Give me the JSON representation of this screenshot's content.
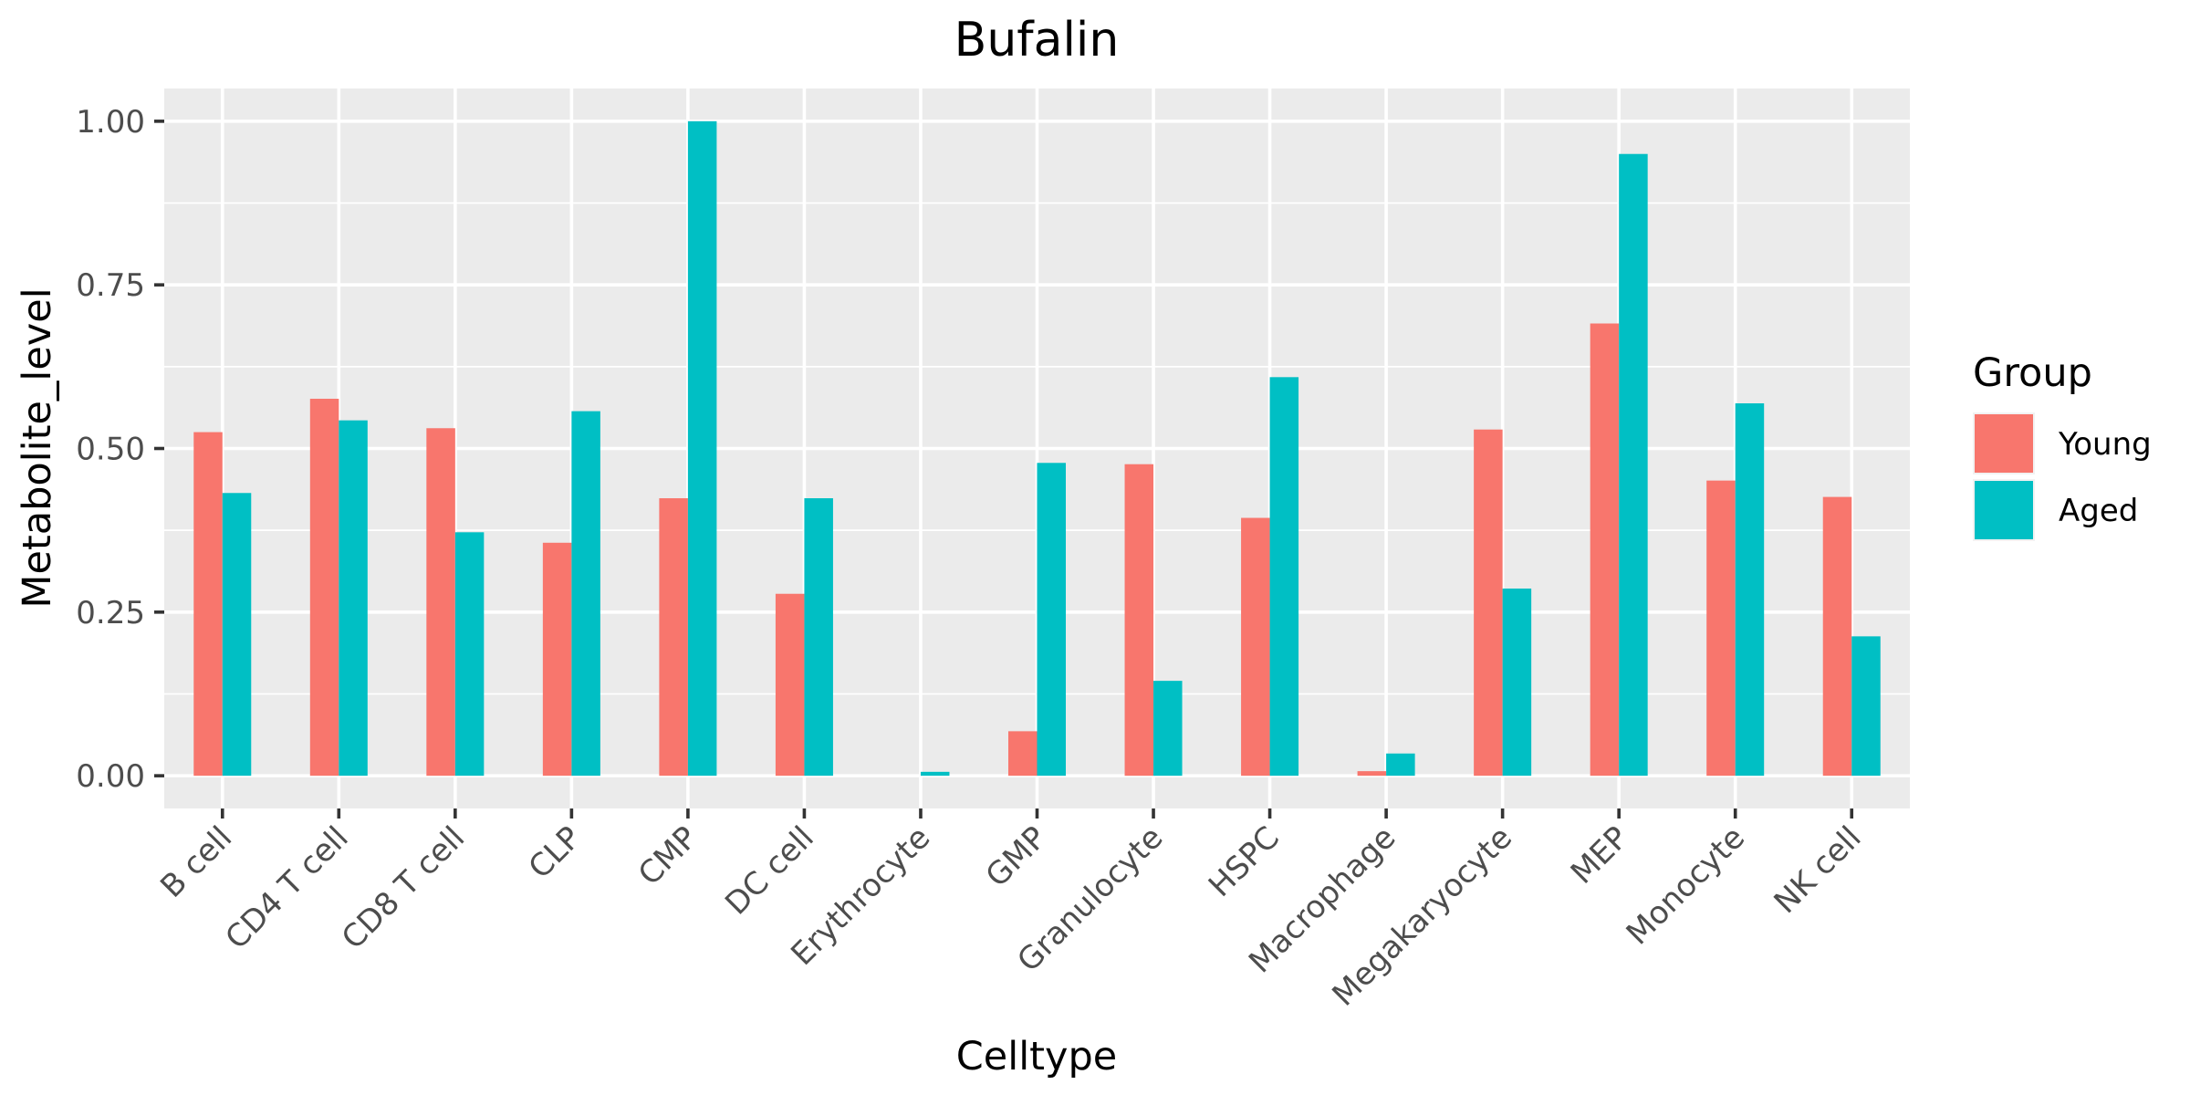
{
  "chart_data": {
    "type": "bar",
    "title": "Bufalin",
    "xlabel": "Celltype",
    "ylabel": "Metabolite_level",
    "categories": [
      "B cell",
      "CD4 T cell",
      "CD8 T cell",
      "CLP",
      "CMP",
      "DC cell",
      "Erythrocyte",
      "GMP",
      "Granulocyte",
      "HSPC",
      "Macrophage",
      "Megakaryocyte",
      "MEP",
      "Monocyte",
      "NK cell"
    ],
    "series": [
      {
        "name": "Young",
        "color": "#F8766D",
        "values": [
          0.525,
          0.576,
          0.531,
          0.356,
          0.424,
          0.278,
          0.0,
          0.068,
          0.476,
          0.394,
          0.007,
          0.529,
          0.691,
          0.451,
          0.426
        ]
      },
      {
        "name": "Aged",
        "color": "#00BFC4",
        "values": [
          0.432,
          0.543,
          0.372,
          0.557,
          1.0,
          0.424,
          0.006,
          0.478,
          0.145,
          0.609,
          0.034,
          0.286,
          0.95,
          0.569,
          0.213
        ]
      }
    ],
    "ylim": [
      -0.05,
      1.05
    ],
    "yticks": [
      0.0,
      0.25,
      0.5,
      0.75,
      1.0
    ],
    "ytick_labels": [
      "0.00",
      "0.25",
      "0.50",
      "0.75",
      "1.00"
    ],
    "grid": true,
    "legend": {
      "title": "Group",
      "position": "right"
    }
  }
}
